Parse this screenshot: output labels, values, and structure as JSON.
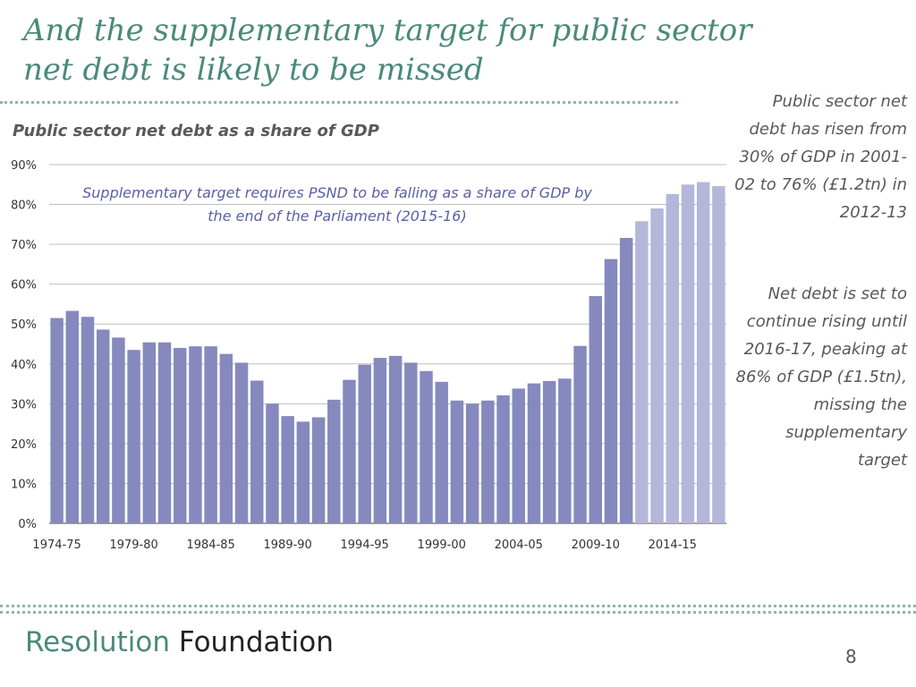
{
  "slide": {
    "title": "And the supplementary target for public sector net debt is likely to be missed",
    "page_number": "8",
    "brand": {
      "part1": "Resolution",
      "part2": "Foundation"
    },
    "side_text": [
      "Public sector net debt has risen from 30% of GDP in 2001-02 to 76% (£1.2tn) in 2012-13",
      "Net debt is set to continue rising until 2016-17, peaking at 86% of GDP (£1.5tn), missing the supplementary target"
    ]
  },
  "chart_data": {
    "type": "bar",
    "title": "Public sector net debt as a share of GDP",
    "annotation": [
      "Supplementary target requires PSND to be falling as a share of GDP by",
      "the end of the Parliament (2015-16)"
    ],
    "ylim": [
      0,
      90
    ],
    "yticks": [
      0,
      10,
      20,
      30,
      40,
      50,
      60,
      70,
      80,
      90
    ],
    "ytick_labels": [
      "0%",
      "10%",
      "20%",
      "30%",
      "40%",
      "50%",
      "60%",
      "70%",
      "80%",
      "90%"
    ],
    "xtick_labels": [
      "1974-75",
      "1979-80",
      "1984-85",
      "1989-90",
      "1994-95",
      "1999-00",
      "2004-05",
      "2009-10",
      "2014-15"
    ],
    "xtick_every": 5,
    "forecast_from_index": 38,
    "colors": {
      "actual": "#8589bd",
      "forecast": "#b4b7d9",
      "grid": "#bfbfbf",
      "axis_text": "#333333",
      "annotation": "#5a5fa8"
    },
    "categories": [
      "1974-75",
      "1975-76",
      "1976-77",
      "1977-78",
      "1978-79",
      "1979-80",
      "1980-81",
      "1981-82",
      "1982-83",
      "1983-84",
      "1984-85",
      "1985-86",
      "1986-87",
      "1987-88",
      "1988-89",
      "1989-90",
      "1990-91",
      "1991-92",
      "1992-93",
      "1993-94",
      "1994-95",
      "1995-96",
      "1996-97",
      "1997-98",
      "1998-99",
      "1999-00",
      "2000-01",
      "2001-02",
      "2002-03",
      "2003-04",
      "2004-05",
      "2005-06",
      "2006-07",
      "2007-08",
      "2008-09",
      "2009-10",
      "2010-11",
      "2011-12",
      "2012-13",
      "2013-14",
      "2014-15",
      "2015-16",
      "2016-17",
      "2017-18"
    ],
    "values": [
      51.5,
      53.3,
      51.8,
      48.6,
      46.6,
      43.5,
      45.4,
      45.4,
      44.0,
      44.4,
      44.4,
      42.5,
      40.3,
      35.8,
      30.0,
      26.9,
      25.5,
      26.6,
      31.0,
      36.0,
      39.8,
      41.5,
      42.0,
      40.3,
      38.2,
      35.5,
      30.8,
      30.0,
      30.8,
      32.1,
      33.8,
      35.1,
      35.7,
      36.3,
      44.5,
      57.0,
      66.3,
      71.6,
      75.8,
      79.0,
      82.6,
      85.0,
      85.6,
      84.6
    ]
  }
}
